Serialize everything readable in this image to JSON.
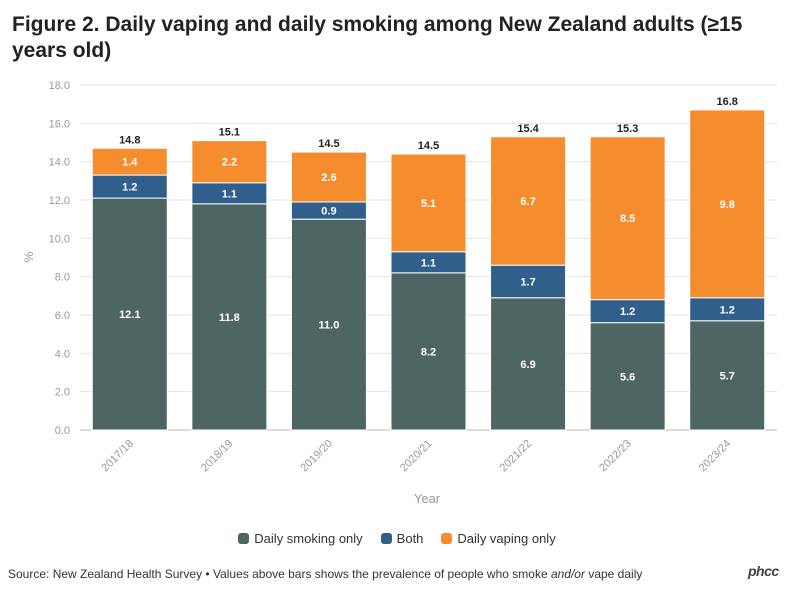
{
  "title": "Figure 2. Daily vaping and daily smoking among New Zealand adults (≥15 years old)",
  "footer": {
    "prefix": "Source: New Zealand Health Survey • Values above bars shows the prevalence of people who smoke ",
    "emphasis": "and/or",
    "suffix": " vape daily"
  },
  "logo_text": "phcc",
  "chart_data": {
    "type": "bar",
    "stacked": true,
    "categories": [
      "2017/18",
      "2018/19",
      "2019/20",
      "2020/21",
      "2021/22",
      "2022/23",
      "2023/24"
    ],
    "series": [
      {
        "name": "Daily smoking only",
        "color": "#4d6664",
        "values": [
          12.1,
          11.8,
          11.0,
          8.2,
          6.9,
          5.6,
          5.7
        ],
        "labels": [
          "12.1",
          "11.8",
          "11.0",
          "8.2",
          "6.9",
          "5.6",
          "5.7"
        ]
      },
      {
        "name": "Both",
        "color": "#2f5f8a",
        "values": [
          1.2,
          1.1,
          0.9,
          1.1,
          1.7,
          1.2,
          1.2
        ],
        "labels": [
          "1.2",
          "1.1",
          "0.9",
          "1.1",
          "1.7",
          "1.2",
          "1.2"
        ]
      },
      {
        "name": "Daily vaping only",
        "color": "#f58d2f",
        "values": [
          1.4,
          2.2,
          2.6,
          5.1,
          6.7,
          8.5,
          9.8
        ],
        "labels": [
          "1.4",
          "2.2",
          "2.6",
          "5.1",
          "6.7",
          "8.5",
          "9.8"
        ]
      }
    ],
    "totals": [
      "14.8",
      "15.1",
      "14.5",
      "14.5",
      "15.4",
      "15.3",
      "16.8"
    ],
    "xlabel": "Year",
    "ylabel": "%",
    "ylim": [
      0,
      18
    ],
    "yticks": [
      "0.0",
      "2.0",
      "4.0",
      "6.0",
      "8.0",
      "10.0",
      "12.0",
      "14.0",
      "16.0",
      "18.0"
    ],
    "grid": true,
    "legend_position": "bottom"
  }
}
